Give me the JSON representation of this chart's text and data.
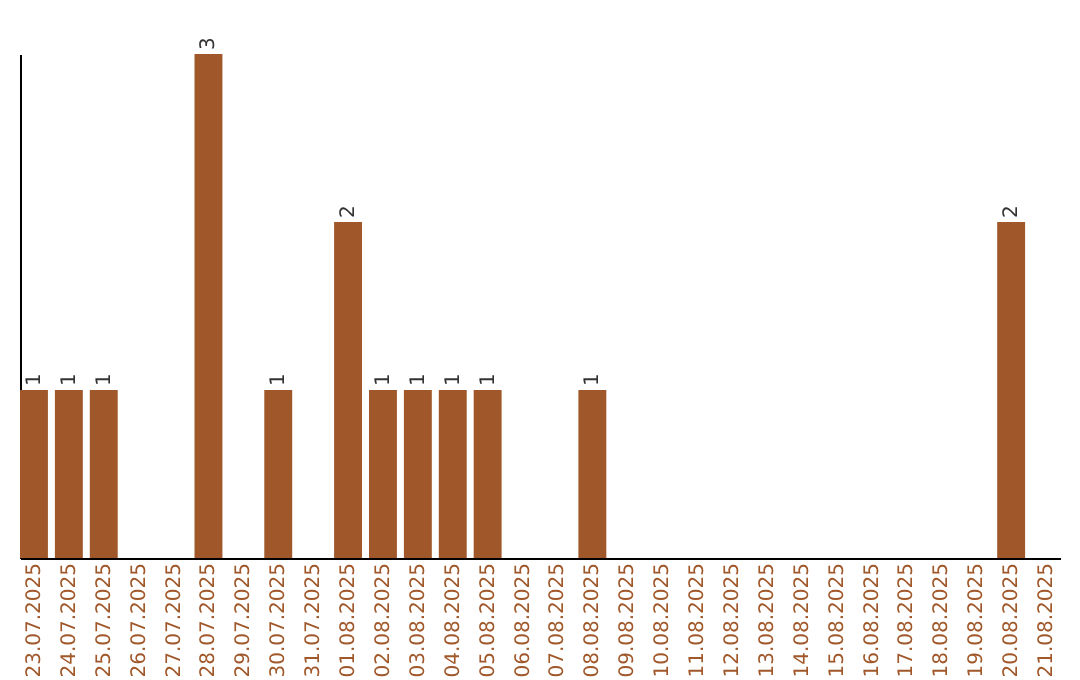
{
  "chart_data": {
    "type": "bar",
    "categories": [
      "23.07.2025",
      "24.07.2025",
      "25.07.2025",
      "26.07.2025",
      "27.07.2025",
      "28.07.2025",
      "29.07.2025",
      "30.07.2025",
      "31.07.2025",
      "01.08.2025",
      "02.08.2025",
      "03.08.2025",
      "04.08.2025",
      "05.08.2025",
      "06.08.2025",
      "07.08.2025",
      "08.08.2025",
      "09.08.2025",
      "10.08.2025",
      "11.08.2025",
      "12.08.2025",
      "13.08.2025",
      "14.08.2025",
      "15.08.2025",
      "16.08.2025",
      "17.08.2025",
      "18.08.2025",
      "19.08.2025",
      "20.08.2025",
      "21.08.2025"
    ],
    "values": [
      1,
      1,
      1,
      0,
      0,
      3,
      0,
      1,
      0,
      2,
      1,
      1,
      1,
      1,
      0,
      0,
      1,
      0,
      0,
      0,
      0,
      0,
      0,
      0,
      0,
      0,
      0,
      0,
      2,
      0
    ],
    "value_labels": [
      "1",
      "1",
      "1",
      null,
      null,
      "3",
      null,
      "1",
      null,
      "2",
      "1",
      "1",
      "1",
      "1",
      null,
      null,
      "1",
      null,
      null,
      null,
      null,
      null,
      null,
      null,
      null,
      null,
      null,
      null,
      "2",
      null
    ],
    "color": "#a0582a",
    "ylim": [
      0,
      3
    ],
    "tick_labels": "x",
    "grid": false
  }
}
